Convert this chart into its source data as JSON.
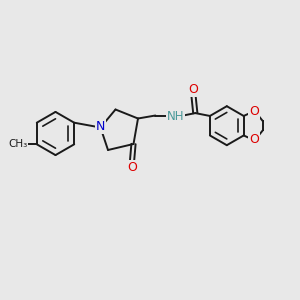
{
  "bg_color": "#e8e8e8",
  "bond_color": "#1a1a1a",
  "N_color": "#0000cc",
  "O_color": "#dd0000",
  "NH_color": "#4a9999",
  "line_width": 1.4,
  "figsize": [
    3.0,
    3.0
  ],
  "dpi": 100,
  "xlim": [
    0,
    10
  ],
  "ylim": [
    0,
    10
  ]
}
